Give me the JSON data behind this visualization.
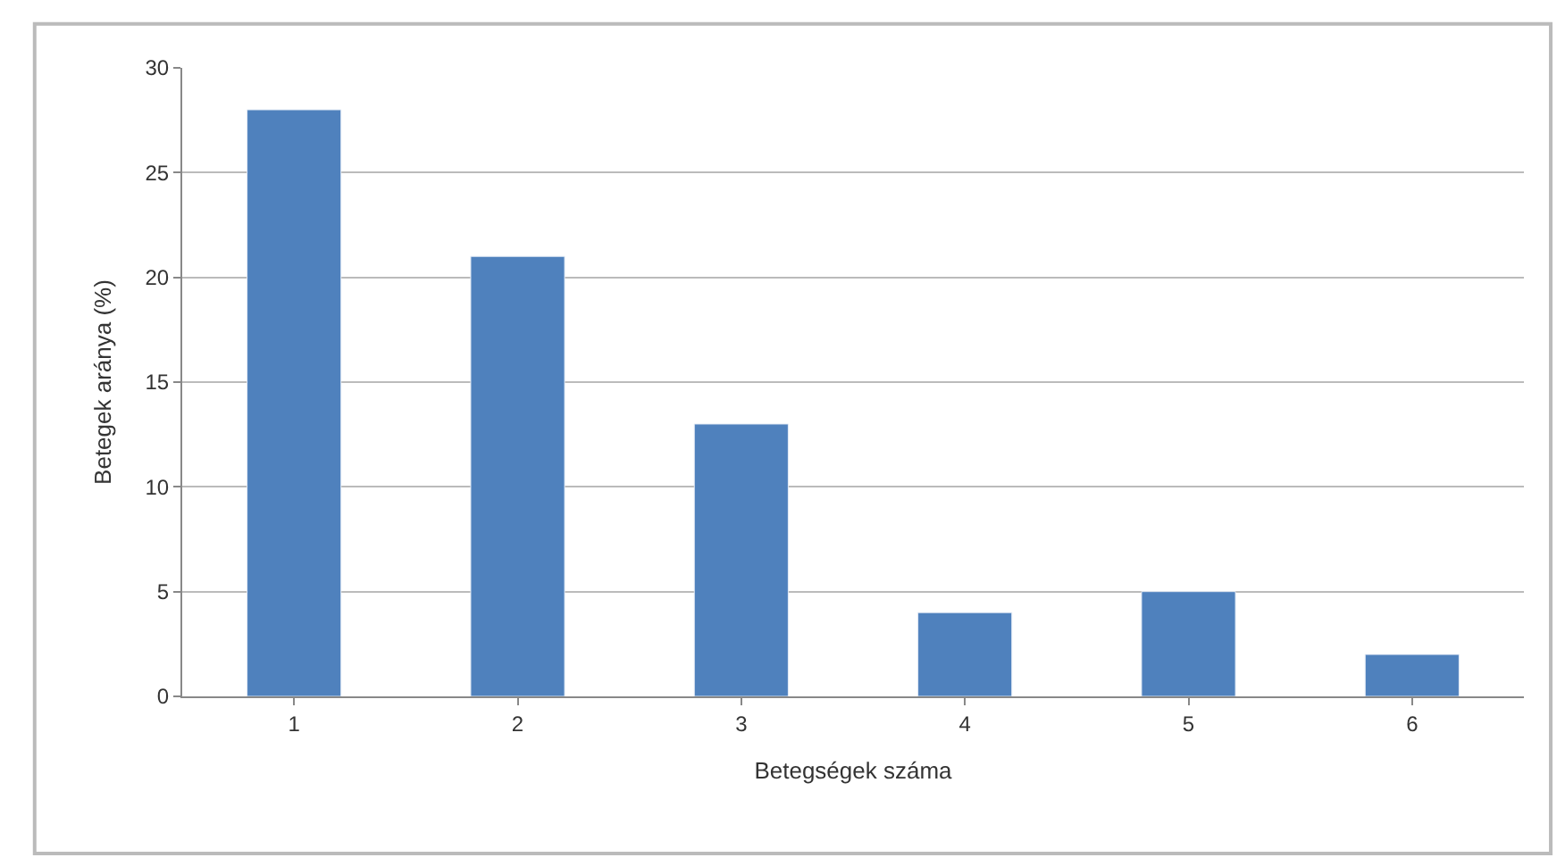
{
  "chart_data": {
    "type": "bar",
    "xlabel": "Betegségek száma",
    "ylabel": "Betegek aránya (%)",
    "categories": [
      "1",
      "2",
      "3",
      "4",
      "5",
      "6"
    ],
    "series": [
      {
        "color": "#4f81bd",
        "values": [
          28,
          21,
          13,
          4,
          5,
          2
        ]
      }
    ],
    "ylim": [
      0,
      30
    ],
    "yticks": [
      0,
      5,
      10,
      15,
      20,
      25,
      30
    ],
    "grid": "y"
  }
}
